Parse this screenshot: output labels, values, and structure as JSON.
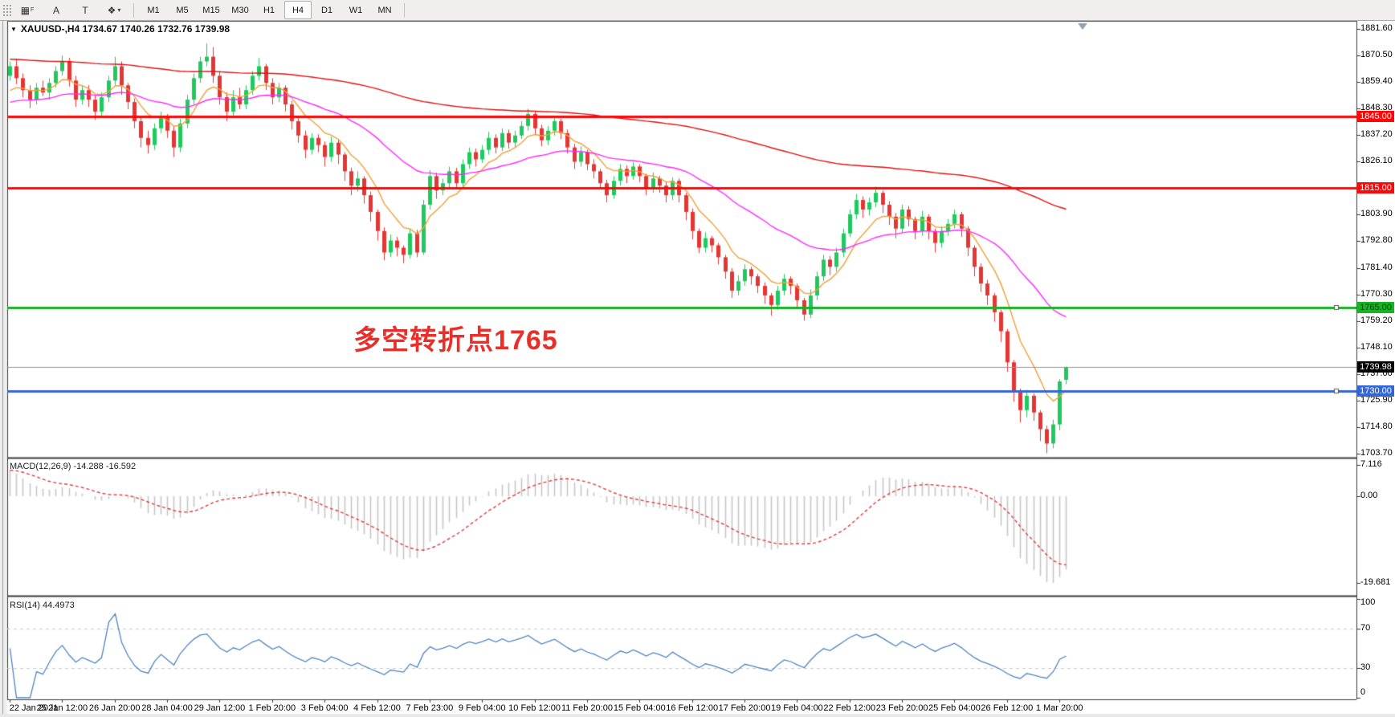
{
  "toolbar": {
    "icons": [
      {
        "name": "grid-f-icon",
        "glyph": "▦",
        "sub": "F"
      },
      {
        "name": "text-label-icon",
        "glyph": "A",
        "sub": ""
      },
      {
        "name": "text-box-icon",
        "glyph": "T",
        "sub": ""
      },
      {
        "name": "crosshair-icon",
        "glyph": "❖",
        "sub": "▾"
      }
    ],
    "timeframes": [
      {
        "label": "M1",
        "active": false
      },
      {
        "label": "M5",
        "active": false
      },
      {
        "label": "M15",
        "active": false
      },
      {
        "label": "M30",
        "active": false
      },
      {
        "label": "H1",
        "active": false
      },
      {
        "label": "H4",
        "active": true
      },
      {
        "label": "D1",
        "active": false
      },
      {
        "label": "W1",
        "active": false
      },
      {
        "label": "MN",
        "active": false
      }
    ]
  },
  "chart": {
    "symbol_line": {
      "dropdown_glyph": "▼",
      "text": "XAUUSD-,H4  1734.67 1740.26 1732.76 1739.98"
    },
    "annotation": {
      "text": "多空转折点1765",
      "color": "#e8302a"
    },
    "price_axis_ticks": [
      "1881.60",
      "1870.50",
      "1859.40",
      "1848.30",
      "1837.20",
      "1826.10",
      "1803.90",
      "1792.80",
      "1781.40",
      "1770.30",
      "1759.20",
      "1748.10",
      "1737.00",
      "1725.90",
      "1714.80",
      "1703.70"
    ]
  },
  "chart_data": {
    "type": "candlestick",
    "symbol": "XAUUSD-",
    "timeframe": "H4",
    "title": "XAUUSD-,H4  1734.67 1740.26 1732.76 1739.98",
    "last_candle": {
      "open": "1734.67",
      "high": "1740.26",
      "low": "1732.76",
      "close": "1739.98"
    },
    "ylim": [
      1702.75,
      1885.0
    ],
    "colors": {
      "up": "#1fc95e",
      "down": "#e43634",
      "ma_fast": "#efa13a",
      "ma_mid": "#ff27ff",
      "ma_slow": "#e11212",
      "macd_hist": "#c6c6c6",
      "macd_signal": "#e23b3b",
      "rsi": "#4f86c0",
      "background": "#ffffff"
    },
    "x_labels": [
      "22 Jan 2021",
      "25 Jan 12:00",
      "26 Jan 20:00",
      "28 Jan 04:00",
      "29 Jan 12:00",
      "1 Feb 20:00",
      "3 Feb 04:00",
      "4 Feb 12:00",
      "7 Feb 23:00",
      "9 Feb 04:00",
      "10 Feb 12:00",
      "11 Feb 20:00",
      "15 Feb 04:00",
      "16 Feb 12:00",
      "17 Feb 20:00",
      "19 Feb 04:00",
      "22 Feb 12:00",
      "23 Feb 20:00",
      "25 Feb 04:00",
      "26 Feb 12:00",
      "1 Mar 20:00"
    ],
    "x_label_step": 8,
    "hlines": [
      {
        "value": 1845.0,
        "label": "1845.00",
        "color": "#ff0707",
        "lw": 3,
        "fg": "#ffffff",
        "handle": false
      },
      {
        "value": 1815.0,
        "label": "1815.00",
        "color": "#ff0707",
        "lw": 3,
        "fg": "#ffffff",
        "handle": false
      },
      {
        "value": 1765.0,
        "label": "1765.00",
        "color": "#16b325",
        "lw": 3,
        "fg": "#063f06",
        "handle": true
      },
      {
        "value": 1730.0,
        "label": "1730.00",
        "color": "#3566d6",
        "lw": 3,
        "fg": "#ffffff",
        "handle": true
      },
      {
        "value": 1739.98,
        "label": "1739.98",
        "color": "#8c98a0",
        "lw": 1,
        "fg": "#ffffff",
        "label_bg": "#000000",
        "current": true
      }
    ],
    "moving_averages": [
      {
        "name": "fast-ma",
        "period": 8,
        "seed": 1853,
        "color": "#efa13a"
      },
      {
        "name": "mid-ma",
        "period": 34,
        "seed": 1850,
        "color": "#ff27ff"
      },
      {
        "name": "slow-ma",
        "period": 160,
        "seed": 1869,
        "color": "#e11212"
      }
    ],
    "indicators": [
      {
        "type": "MACD",
        "label": "MACD(12,26,9) -14.288 -16.592",
        "params": [
          12,
          26,
          9
        ],
        "value_main": "-14.288",
        "value_signal": "-16.592",
        "axis_ticks": [
          "7.116",
          "0.00",
          "-19.681"
        ],
        "axis_values": [
          7.116,
          0.0,
          -19.681
        ],
        "ylim": [
          8.2,
          -22.4
        ],
        "ema_fast_seed": 1866,
        "ema_slow_seed": 1859
      },
      {
        "type": "RSI",
        "label": "RSI(14) 44.4973",
        "period": 14,
        "value": "44.4973",
        "axis_ticks": [
          "100",
          "70",
          "30",
          "0"
        ],
        "axis_values": [
          100,
          70,
          30,
          0
        ],
        "levels": [
          70,
          30
        ],
        "ylim": [
          0,
          100
        ]
      }
    ],
    "ohlc": [
      [
        1862,
        1868,
        1860,
        1866
      ],
      [
        1866,
        1869,
        1858.5,
        1861
      ],
      [
        1861,
        1863,
        1853,
        1856
      ],
      [
        1856,
        1858,
        1848.5,
        1852
      ],
      [
        1852,
        1859,
        1850,
        1857
      ],
      [
        1857,
        1860,
        1853.5,
        1855
      ],
      [
        1855,
        1861,
        1852,
        1859
      ],
      [
        1859,
        1866,
        1857,
        1864
      ],
      [
        1864,
        1870.5,
        1862,
        1868
      ],
      [
        1868,
        1869.5,
        1857.5,
        1860
      ],
      [
        1860,
        1862,
        1849,
        1852
      ],
      [
        1852,
        1858,
        1850,
        1856
      ],
      [
        1856,
        1858,
        1849,
        1852
      ],
      [
        1852,
        1854,
        1843.5,
        1847
      ],
      [
        1847,
        1855,
        1845,
        1853
      ],
      [
        1853,
        1862,
        1851,
        1860
      ],
      [
        1860,
        1870,
        1858,
        1866
      ],
      [
        1866,
        1868,
        1854,
        1858
      ],
      [
        1858,
        1859,
        1848,
        1851
      ],
      [
        1851,
        1852.5,
        1840,
        1843
      ],
      [
        1843,
        1845,
        1832,
        1836
      ],
      [
        1836,
        1839,
        1829.5,
        1833
      ],
      [
        1833,
        1842,
        1831,
        1840
      ],
      [
        1840,
        1847,
        1838,
        1845
      ],
      [
        1845,
        1846,
        1836,
        1839
      ],
      [
        1839,
        1841,
        1828,
        1832
      ],
      [
        1832,
        1844,
        1830,
        1842
      ],
      [
        1842,
        1854,
        1840,
        1852
      ],
      [
        1852,
        1863,
        1850,
        1861
      ],
      [
        1861,
        1870,
        1859,
        1868
      ],
      [
        1868,
        1875.5,
        1866,
        1870
      ],
      [
        1870,
        1874,
        1859,
        1862
      ],
      [
        1862,
        1864,
        1850,
        1853
      ],
      [
        1853,
        1855,
        1843,
        1847
      ],
      [
        1847,
        1856,
        1845,
        1853
      ],
      [
        1853,
        1857,
        1848,
        1850
      ],
      [
        1850,
        1858,
        1848,
        1856
      ],
      [
        1856,
        1864,
        1854,
        1862
      ],
      [
        1862,
        1869.5,
        1860,
        1866
      ],
      [
        1866,
        1867,
        1856,
        1859
      ],
      [
        1859,
        1861,
        1850,
        1853
      ],
      [
        1853,
        1859,
        1851,
        1857
      ],
      [
        1857,
        1858,
        1847,
        1850
      ],
      [
        1850,
        1851.5,
        1839.5,
        1843
      ],
      [
        1843,
        1845,
        1834,
        1837
      ],
      [
        1837,
        1839,
        1827.5,
        1831
      ],
      [
        1831,
        1838,
        1829,
        1836
      ],
      [
        1836,
        1837.5,
        1830,
        1833
      ],
      [
        1833,
        1834.5,
        1824,
        1828
      ],
      [
        1828,
        1836.5,
        1826,
        1834
      ],
      [
        1834,
        1835.5,
        1825,
        1829
      ],
      [
        1829,
        1830,
        1818,
        1822
      ],
      [
        1822,
        1823.5,
        1812,
        1816
      ],
      [
        1816,
        1822,
        1813.5,
        1819
      ],
      [
        1819,
        1820,
        1808.5,
        1812
      ],
      [
        1812,
        1813.5,
        1801,
        1805
      ],
      [
        1805,
        1806,
        1793,
        1797
      ],
      [
        1797,
        1798.5,
        1784.8,
        1788
      ],
      [
        1788,
        1795.5,
        1786,
        1793
      ],
      [
        1793,
        1794.5,
        1786.5,
        1790
      ],
      [
        1790,
        1791,
        1783.5,
        1787
      ],
      [
        1787,
        1798,
        1785.5,
        1796
      ],
      [
        1796,
        1797.5,
        1786,
        1788
      ],
      [
        1788,
        1810,
        1787,
        1808
      ],
      [
        1808,
        1822.5,
        1806,
        1820
      ],
      [
        1820,
        1821.5,
        1810.5,
        1814
      ],
      [
        1814,
        1819,
        1812,
        1817
      ],
      [
        1817,
        1824,
        1815,
        1822
      ],
      [
        1822,
        1823.5,
        1814.5,
        1817
      ],
      [
        1817,
        1827,
        1815.5,
        1825
      ],
      [
        1825,
        1832,
        1823,
        1830
      ],
      [
        1830,
        1831.5,
        1824,
        1827
      ],
      [
        1827,
        1833,
        1825.5,
        1831
      ],
      [
        1831,
        1838.5,
        1829,
        1836
      ],
      [
        1836,
        1837.5,
        1829.5,
        1832
      ],
      [
        1832,
        1840,
        1830.5,
        1838
      ],
      [
        1838,
        1839.5,
        1831.5,
        1834
      ],
      [
        1834,
        1839,
        1832,
        1837
      ],
      [
        1837,
        1843,
        1835.5,
        1841
      ],
      [
        1841,
        1848.2,
        1839,
        1846
      ],
      [
        1846,
        1847,
        1837.5,
        1840
      ],
      [
        1840,
        1841.5,
        1832.5,
        1835
      ],
      [
        1835,
        1841,
        1833,
        1839
      ],
      [
        1839,
        1845,
        1837,
        1843
      ],
      [
        1843,
        1844,
        1835.5,
        1838
      ],
      [
        1838,
        1839.5,
        1829.5,
        1832
      ],
      [
        1832,
        1833.5,
        1823,
        1826
      ],
      [
        1826,
        1832.5,
        1824,
        1830
      ],
      [
        1830,
        1831,
        1822.5,
        1825
      ],
      [
        1825,
        1827,
        1819,
        1822
      ],
      [
        1822,
        1823,
        1814.5,
        1817
      ],
      [
        1817,
        1818.5,
        1809,
        1812
      ],
      [
        1812,
        1820,
        1810.5,
        1818
      ],
      [
        1818,
        1825,
        1816,
        1823
      ],
      [
        1823,
        1824.5,
        1817,
        1820
      ],
      [
        1820,
        1826,
        1818.5,
        1824
      ],
      [
        1824,
        1825,
        1817.5,
        1820
      ],
      [
        1820,
        1821,
        1812,
        1815
      ],
      [
        1815,
        1821.5,
        1813,
        1819
      ],
      [
        1819,
        1820,
        1813,
        1816
      ],
      [
        1816,
        1817.5,
        1809,
        1812
      ],
      [
        1812,
        1819.5,
        1810,
        1818
      ],
      [
        1818,
        1819,
        1809,
        1812
      ],
      [
        1812,
        1813,
        1801.5,
        1805
      ],
      [
        1805,
        1806.5,
        1793.5,
        1797
      ],
      [
        1797,
        1798,
        1787.7,
        1790
      ],
      [
        1790,
        1796.5,
        1788,
        1794
      ],
      [
        1794,
        1795,
        1788,
        1791
      ],
      [
        1791,
        1792,
        1783,
        1786
      ],
      [
        1786,
        1787,
        1777,
        1780
      ],
      [
        1780,
        1781.5,
        1769,
        1772
      ],
      [
        1772,
        1778.5,
        1770,
        1776
      ],
      [
        1776,
        1783,
        1774,
        1781
      ],
      [
        1781,
        1782,
        1774.5,
        1778
      ],
      [
        1778,
        1779,
        1771,
        1774
      ],
      [
        1774,
        1775.5,
        1766.5,
        1770
      ],
      [
        1770,
        1771,
        1761.5,
        1766
      ],
      [
        1766,
        1774,
        1764,
        1772
      ],
      [
        1772,
        1779,
        1770,
        1777
      ],
      [
        1777,
        1778,
        1770.5,
        1774
      ],
      [
        1774,
        1775,
        1765,
        1768
      ],
      [
        1768,
        1769,
        1759.5,
        1762
      ],
      [
        1762,
        1772.5,
        1760.5,
        1770
      ],
      [
        1770,
        1780,
        1768,
        1778
      ],
      [
        1778,
        1787,
        1776,
        1785
      ],
      [
        1785,
        1786.5,
        1778.5,
        1782
      ],
      [
        1782,
        1790,
        1780,
        1788
      ],
      [
        1788,
        1798,
        1786,
        1796
      ],
      [
        1796,
        1806,
        1794.5,
        1804
      ],
      [
        1804,
        1812.5,
        1802,
        1810
      ],
      [
        1810,
        1811.5,
        1802.5,
        1806
      ],
      [
        1806,
        1811,
        1803.5,
        1809
      ],
      [
        1809,
        1815.6,
        1807,
        1813
      ],
      [
        1813,
        1814,
        1804.5,
        1808
      ],
      [
        1808,
        1809.5,
        1799.5,
        1803
      ],
      [
        1803,
        1804.5,
        1794,
        1798
      ],
      [
        1798,
        1808,
        1796.5,
        1806
      ],
      [
        1806,
        1807.5,
        1799,
        1802
      ],
      [
        1802,
        1803,
        1793.5,
        1797
      ],
      [
        1797,
        1805.5,
        1795,
        1803
      ],
      [
        1803,
        1804,
        1793.5,
        1797
      ],
      [
        1797,
        1798,
        1788,
        1792
      ],
      [
        1792,
        1799,
        1790,
        1797
      ],
      [
        1797,
        1802,
        1795,
        1800
      ],
      [
        1800,
        1806,
        1798,
        1804
      ],
      [
        1804,
        1805,
        1794.5,
        1798
      ],
      [
        1798,
        1799,
        1786.5,
        1790
      ],
      [
        1790,
        1791,
        1778,
        1782
      ],
      [
        1782,
        1783.5,
        1771.5,
        1775
      ],
      [
        1775,
        1776.5,
        1766,
        1770
      ],
      [
        1770,
        1771,
        1759,
        1763
      ],
      [
        1763,
        1764,
        1750.5,
        1755
      ],
      [
        1755,
        1756,
        1738,
        1742
      ],
      [
        1742,
        1743,
        1725.5,
        1730
      ],
      [
        1730,
        1731,
        1716.8,
        1722
      ],
      [
        1722,
        1730.5,
        1719,
        1728
      ],
      [
        1728,
        1729,
        1717.5,
        1721
      ],
      [
        1721,
        1722,
        1709,
        1714
      ],
      [
        1714,
        1715.5,
        1703.9,
        1708
      ],
      [
        1708,
        1718,
        1706,
        1716
      ],
      [
        1716,
        1735,
        1713.5,
        1734
      ],
      [
        1734.7,
        1740.3,
        1732.8,
        1740
      ]
    ]
  }
}
